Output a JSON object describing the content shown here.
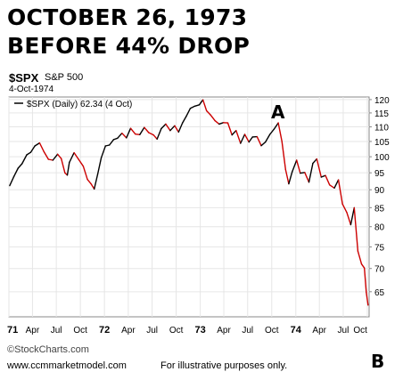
{
  "headline": {
    "line1": "OCTOBER 26, 1973",
    "line2": "BEFORE 44% DROP"
  },
  "symbol": {
    "ticker": "$SPX",
    "name": "S&P 500",
    "date": "4-Oct-1974"
  },
  "footer": {
    "copyright": "©StockCharts.com",
    "url": "www.ccmmarketmodel.com",
    "note": "For illustrative purposes only."
  },
  "chart_data": {
    "type": "line",
    "legend": "$SPX (Daily) 62.34 (4 Oct)",
    "legend_position": "top-left",
    "series": [
      {
        "name": "$SPX (Daily)",
        "color": "#cc0000",
        "secondary_color": "#000000",
        "x": [
          "1971-01-04",
          "1971-01-20",
          "1971-02-05",
          "1971-02-20",
          "1971-03-10",
          "1971-03-25",
          "1971-04-10",
          "1971-04-28",
          "1971-05-15",
          "1971-06-01",
          "1971-06-18",
          "1971-07-06",
          "1971-07-20",
          "1971-08-03",
          "1971-08-12",
          "1971-08-20",
          "1971-09-07",
          "1971-09-24",
          "1971-10-12",
          "1971-10-28",
          "1971-11-10",
          "1971-11-23",
          "1971-12-06",
          "1971-12-20",
          "1972-01-05",
          "1972-01-20",
          "1972-02-05",
          "1972-02-20",
          "1972-03-08",
          "1972-03-25",
          "1972-04-10",
          "1972-04-28",
          "1972-05-15",
          "1972-06-01",
          "1972-06-18",
          "1972-07-06",
          "1972-07-20",
          "1972-08-05",
          "1972-08-22",
          "1972-09-08",
          "1972-09-25",
          "1972-10-10",
          "1972-10-25",
          "1972-11-08",
          "1972-11-24",
          "1972-12-11",
          "1972-12-28",
          "1973-01-11",
          "1973-01-25",
          "1973-02-09",
          "1973-02-26",
          "1973-03-14",
          "1973-03-30",
          "1973-04-16",
          "1973-05-02",
          "1973-05-18",
          "1973-06-04",
          "1973-06-20",
          "1973-07-06",
          "1973-07-20",
          "1973-08-06",
          "1973-08-22",
          "1973-09-07",
          "1973-09-24",
          "1973-10-10",
          "1973-10-26",
          "1973-11-09",
          "1973-11-23",
          "1973-12-05",
          "1973-12-18",
          "1974-01-04",
          "1974-01-18",
          "1974-02-04",
          "1974-02-20",
          "1974-03-07",
          "1974-03-22",
          "1974-04-08",
          "1974-04-24",
          "1974-05-10",
          "1974-05-28",
          "1974-06-13",
          "1974-06-28",
          "1974-07-15",
          "1974-07-30",
          "1974-08-12",
          "1974-08-26",
          "1974-09-09",
          "1974-09-20",
          "1974-09-27",
          "1974-10-04"
        ],
        "values": [
          91.2,
          93.9,
          96.4,
          97.8,
          100.6,
          101.4,
          103.5,
          104.5,
          101.6,
          99.2,
          98.9,
          100.8,
          99.4,
          95.0,
          94.3,
          98.2,
          101.3,
          99.2,
          97.0,
          93.0,
          91.8,
          90.2,
          94.5,
          99.7,
          103.5,
          103.8,
          105.6,
          106.1,
          107.8,
          106.2,
          109.5,
          107.5,
          107.3,
          109.8,
          108.0,
          107.2,
          105.8,
          109.4,
          111.0,
          108.7,
          110.4,
          108.2,
          111.4,
          113.7,
          116.7,
          117.5,
          118.0,
          119.9,
          115.8,
          114.3,
          112.2,
          111.0,
          111.5,
          111.4,
          107.2,
          108.7,
          104.4,
          107.4,
          104.8,
          106.5,
          106.6,
          103.6,
          104.8,
          107.4,
          109.2,
          111.4,
          105.0,
          96.0,
          91.7,
          95.3,
          98.9,
          94.9,
          95.1,
          92.2,
          97.9,
          99.3,
          93.7,
          94.2,
          91.4,
          90.5,
          92.9,
          86.0,
          83.7,
          80.5,
          85.0,
          74.0,
          71.0,
          70.1,
          64.9,
          62.3
        ]
      }
    ],
    "x_tick_labels": [
      "71",
      "Apr",
      "Jul",
      "Oct",
      "72",
      "Apr",
      "Jul",
      "Oct",
      "73",
      "Apr",
      "Jul",
      "Oct",
      "74",
      "Apr",
      "Jul",
      "Oct"
    ],
    "x_bold_labels": [
      "71",
      "72",
      "73",
      "74"
    ],
    "y_tick_labels": [
      "120",
      "115",
      "110",
      "105",
      "100",
      "95",
      "90",
      "85",
      "80",
      "75",
      "70",
      "65"
    ],
    "ylim": [
      60,
      121
    ],
    "y_scale": "log",
    "y_axis_position": "right",
    "grid": true,
    "annotations": [
      {
        "text": "A",
        "date": "1973-10-26",
        "value": 111.4
      },
      {
        "text": "B",
        "position": "below-right"
      }
    ]
  }
}
